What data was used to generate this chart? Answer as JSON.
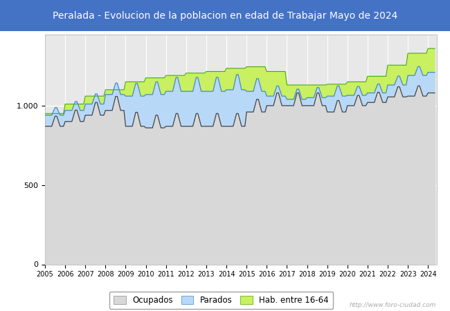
{
  "title": "Peralada - Evolucion de la poblacion en edad de Trabajar Mayo de 2024",
  "title_bg_color": "#4472c4",
  "title_text_color": "#ffffff",
  "title_fontsize": 10,
  "plot_bg_color": "#e8e8e8",
  "fig_bg_color": "#ffffff",
  "grid_color": "#ffffff",
  "watermark": "http://www.foro-ciudad.com",
  "legend_labels": [
    "Ocupados",
    "Parados",
    "Hab. entre 16-64"
  ],
  "fill_hab_color": "#c8f060",
  "fill_parados_color": "#b8d8f8",
  "fill_ocupados_color": "#d8d8d8",
  "line_hab_color": "#44aa00",
  "line_parados_color": "#4488cc",
  "line_ocupados_color": "#444444",
  "ylim": [
    0,
    1450
  ],
  "yticks": [
    0,
    500,
    1000
  ],
  "ytick_labels": [
    "0",
    "500",
    "1.000"
  ],
  "xmin": 2005,
  "xmax": 2024.42,
  "hab_annual": [
    950,
    1010,
    1060,
    1100,
    1150,
    1175,
    1190,
    1205,
    1215,
    1235,
    1245,
    1215,
    1130,
    1130,
    1135,
    1150,
    1185,
    1255,
    1330,
    1360
  ],
  "ocupados_annual_base": [
    870,
    900,
    940,
    970,
    870,
    860,
    870,
    870,
    870,
    870,
    960,
    1000,
    1000,
    1000,
    960,
    1000,
    1020,
    1055,
    1060,
    1080
  ],
  "parados_annual_base": [
    940,
    970,
    1010,
    1070,
    1060,
    1070,
    1090,
    1090,
    1090,
    1100,
    1090,
    1060,
    1040,
    1050,
    1060,
    1065,
    1080,
    1130,
    1190,
    1210
  ],
  "ocupados_peak_amp": [
    80,
    90,
    100,
    110,
    110,
    100,
    100,
    100,
    100,
    100,
    100,
    100,
    100,
    100,
    90,
    80,
    80,
    80,
    80,
    80
  ],
  "parados_peak_amp": [
    60,
    70,
    80,
    90,
    100,
    100,
    110,
    110,
    110,
    120,
    100,
    80,
    80,
    80,
    80,
    70,
    70,
    70,
    70,
    70
  ]
}
